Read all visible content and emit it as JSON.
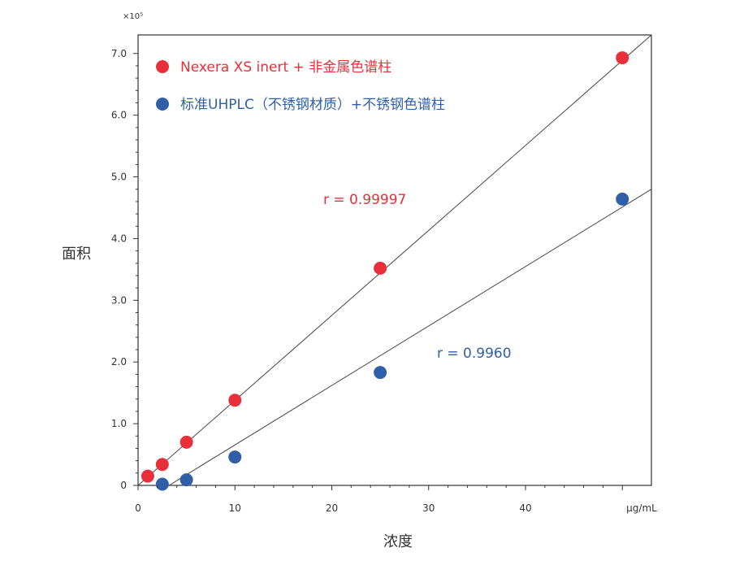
{
  "chart_data": {
    "type": "scatter",
    "xlabel": "浓度",
    "ylabel": "面积",
    "y_scale_label": "×10⁵",
    "x_unit_label": "μg/mL",
    "xlim": [
      0,
      53
    ],
    "ylim": [
      0,
      7.3
    ],
    "x_ticks": [
      0,
      10,
      20,
      30,
      40,
      50
    ],
    "x_tick_labels": [
      "0",
      "10",
      "20",
      "30",
      "40",
      ""
    ],
    "y_ticks": [
      0,
      1,
      2,
      3,
      4,
      5,
      6,
      7
    ],
    "y_tick_labels": [
      "0",
      "1.0",
      "2.0",
      "3.0",
      "4.0",
      "5.0",
      "6.0",
      "7.0"
    ],
    "grid": false,
    "legend_position": "top-left",
    "series": [
      {
        "name": "Nexera XS inert + 非金属色谱柱",
        "color": "#e8303a",
        "x": [
          1,
          2.5,
          5,
          10,
          25,
          50
        ],
        "y": [
          0.15,
          0.34,
          0.7,
          1.38,
          3.52,
          6.93
        ],
        "fit_line": {
          "x": [
            0,
            53
          ],
          "y": [
            0,
            7.3
          ]
        },
        "annotation": "r = 0.99997"
      },
      {
        "name": "标准UHPLC（不锈钢材质）+不锈钢色谱柱",
        "color": "#2f5fa7",
        "x": [
          2.5,
          5,
          10,
          25,
          50
        ],
        "y": [
          0.02,
          0.09,
          0.46,
          1.83,
          4.64
        ],
        "fit_line": {
          "x": [
            3.2,
            53
          ],
          "y": [
            0,
            4.8
          ]
        },
        "annotation": "r = 0.9960"
      }
    ]
  }
}
